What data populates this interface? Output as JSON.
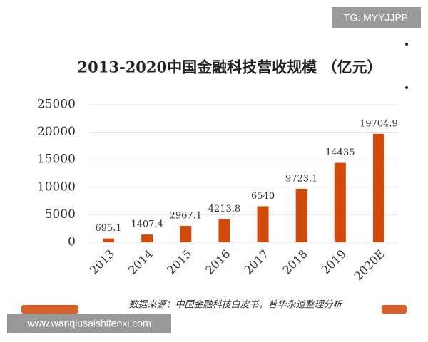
{
  "chart_data": {
    "type": "bar",
    "title": "2013-2020中国金融科技营收规模 （亿元）",
    "categories": [
      "2013",
      "2014",
      "2015",
      "2016",
      "2017",
      "2018",
      "2019",
      "2020E"
    ],
    "values": [
      695.1,
      1407.4,
      2967.1,
      4213.8,
      6540,
      9723.1,
      14435,
      19704.9
    ],
    "color": "#d04a0c",
    "ylim": [
      0,
      25000
    ],
    "yticks": [
      0,
      5000,
      10000,
      15000,
      20000,
      25000
    ],
    "grid": true,
    "source": "数据来源：中国金融科技白皮书，普华永道整理分析"
  },
  "watermark": "TG: MYYJJPP",
  "banner": "www.wanqiusaishifenxi.com"
}
